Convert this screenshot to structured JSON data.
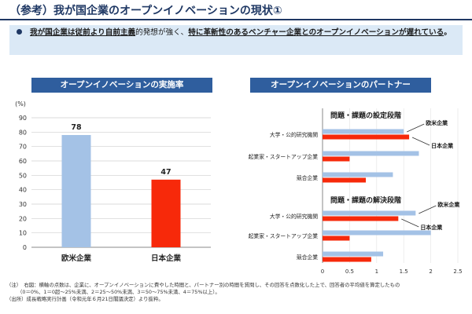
{
  "header": {
    "title": "（参考）我が国企業のオープンイノベーションの現状①",
    "callout": {
      "seg1": "我が国企業は従前より自前主義",
      "seg2": "的発想が強く、",
      "seg3": "特に革新性のあるベンチャー企業とのオープンイノベーションが遅れている",
      "seg4": "。"
    }
  },
  "colors": {
    "header_bg": "#2f5e9e",
    "title": "#1f3864",
    "callout_bg": "#dbe9f6",
    "bar_blue": "#a4c2e6",
    "bar_red": "#f7290a",
    "axis": "#a6a6a6"
  },
  "left_chart": {
    "header": "オープンイノベーションの実施率"
  },
  "right_chart": {
    "header": "オープンイノベーションのパートナー"
  },
  "chart_data": [
    {
      "type": "bar",
      "title": "オープンイノベーションの実施率",
      "ylabel": "(%)",
      "ylim": [
        0,
        90
      ],
      "yticks": [
        "0",
        "10",
        "20",
        "30",
        "40",
        "50",
        "60",
        "70",
        "80",
        "90"
      ],
      "categories": [
        "欧米企業",
        "日本企業"
      ],
      "values": [
        78,
        47
      ],
      "data_labels": [
        "78",
        "47"
      ],
      "colors": [
        "#a4c2e6",
        "#f7290a"
      ]
    },
    {
      "type": "bar",
      "orientation": "horizontal",
      "title": "オープンイノベーションのパートナー",
      "xlim": [
        0,
        2.5
      ],
      "xticks": [
        "0",
        "0.5",
        "1",
        "1.5",
        "2",
        "2.5"
      ],
      "legend": [
        "欧米企業",
        "日本企業"
      ],
      "panels": [
        {
          "title": "問題・課題の設定段階",
          "categories": [
            "大学・公的研究機関",
            "起業家・スタートアップ企業",
            "競合企業"
          ],
          "series": [
            {
              "name": "欧米企業",
              "values": [
                1.5,
                1.78,
                1.3
              ]
            },
            {
              "name": "日本企業",
              "values": [
                1.6,
                0.5,
                0.8
              ]
            }
          ],
          "annotations": [
            "欧米企業",
            "日本企業"
          ]
        },
        {
          "title": "問題・課題の解決段階",
          "categories": [
            "大学・公的研究機関",
            "起業家・スタートアップ企業",
            "競合企業"
          ],
          "series": [
            {
              "name": "欧米企業",
              "values": [
                1.72,
                2.0,
                1.12
              ]
            },
            {
              "name": "日本企業",
              "values": [
                1.4,
                0.5,
                0.9
              ]
            }
          ],
          "annotations": [
            "欧米企業",
            "日本企業"
          ]
        }
      ]
    }
  ],
  "notes": {
    "line1": "（注）　右図：横軸の点数は、企業に、オープンイノベーションに費やした時間と、パートナー別の時間を質問し、その回答を点数化した上で、回答者の平均値を算定したもの",
    "line2": "（0＝0%、1＝0超～25%未満、2＝25～50%未満、3＝50～75%未満、4＝75%以上）。",
    "line3": "（出所）成長戦略実行計画（令和元年６月21日閣議決定）より抜粋。"
  }
}
